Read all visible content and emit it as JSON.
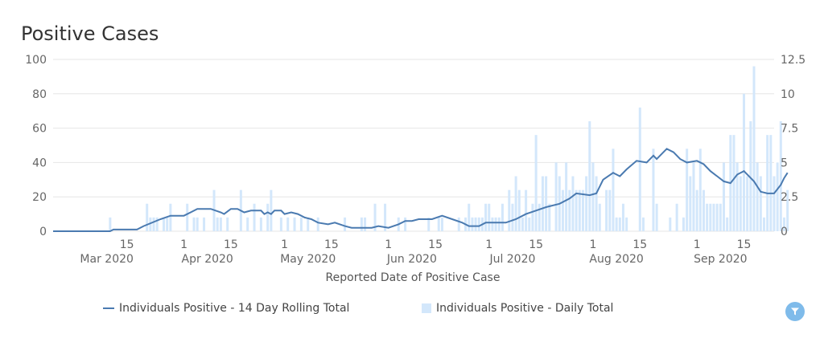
{
  "title": "Positive Cases",
  "legend": {
    "rolling": "Individuals Positive - 14 Day Rolling Total",
    "daily": "Individuals Positive - Daily Total"
  },
  "colors": {
    "line": "#4a7ab0",
    "bar": "#d3e7fb",
    "grid": "#e6e6e6",
    "filter": "#7fbbea"
  },
  "filter_icon": "filter-icon",
  "chart_data": {
    "type": "bar",
    "title": "Positive Cases",
    "xlabel": "Reported Date of Positive Case",
    "ylabel": "",
    "x_range": [
      "2020-02-22",
      "2020-09-24"
    ],
    "ylim": [
      0,
      100
    ],
    "y2lim": [
      0,
      12.5
    ],
    "yticks": [
      0,
      20,
      40,
      60,
      80,
      100
    ],
    "y2ticks": [
      "0",
      "2.5",
      "5",
      "7.5",
      "10",
      "12.5"
    ],
    "grid": true,
    "legend_position": "bottom",
    "x_ticks": [
      {
        "date": "2020-03-15",
        "label": "15"
      },
      {
        "date": "2020-04-01",
        "label": "1"
      },
      {
        "date": "2020-04-15",
        "label": "15"
      },
      {
        "date": "2020-05-01",
        "label": "1"
      },
      {
        "date": "2020-05-15",
        "label": "15"
      },
      {
        "date": "2020-06-01",
        "label": "1"
      },
      {
        "date": "2020-06-15",
        "label": "15"
      },
      {
        "date": "2020-07-01",
        "label": "1"
      },
      {
        "date": "2020-07-15",
        "label": "15"
      },
      {
        "date": "2020-08-01",
        "label": "1"
      },
      {
        "date": "2020-08-15",
        "label": "15"
      },
      {
        "date": "2020-09-01",
        "label": "1"
      },
      {
        "date": "2020-09-15",
        "label": "15"
      }
    ],
    "month_labels": [
      {
        "date": "2020-03-09",
        "label": "Mar 2020"
      },
      {
        "date": "2020-04-08",
        "label": "Apr 2020"
      },
      {
        "date": "2020-05-08",
        "label": "May 2020"
      },
      {
        "date": "2020-06-08",
        "label": "Jun 2020"
      },
      {
        "date": "2020-07-08",
        "label": "Jul 2020"
      },
      {
        "date": "2020-08-08",
        "label": "Aug 2020"
      },
      {
        "date": "2020-09-08",
        "label": "Sep 2020"
      }
    ],
    "series": [
      {
        "name": "Individuals Positive - Daily Total",
        "type": "bar",
        "axis": "right",
        "points": [
          [
            "2020-03-10",
            1
          ],
          [
            "2020-03-15",
            0
          ],
          [
            "2020-03-21",
            2
          ],
          [
            "2020-03-22",
            1
          ],
          [
            "2020-03-23",
            1
          ],
          [
            "2020-03-24",
            1
          ],
          [
            "2020-03-26",
            1
          ],
          [
            "2020-03-27",
            1
          ],
          [
            "2020-03-28",
            2
          ],
          [
            "2020-04-02",
            2
          ],
          [
            "2020-04-04",
            1
          ],
          [
            "2020-04-05",
            1
          ],
          [
            "2020-04-07",
            1
          ],
          [
            "2020-04-10",
            3
          ],
          [
            "2020-04-11",
            1
          ],
          [
            "2020-04-12",
            1
          ],
          [
            "2020-04-14",
            1
          ],
          [
            "2020-04-18",
            3
          ],
          [
            "2020-04-20",
            1
          ],
          [
            "2020-04-22",
            2
          ],
          [
            "2020-04-24",
            1
          ],
          [
            "2020-04-26",
            2
          ],
          [
            "2020-04-27",
            3
          ],
          [
            "2020-04-30",
            1
          ],
          [
            "2020-05-02",
            1
          ],
          [
            "2020-05-04",
            1
          ],
          [
            "2020-05-06",
            1
          ],
          [
            "2020-05-08",
            1
          ],
          [
            "2020-05-11",
            1
          ],
          [
            "2020-05-19",
            1
          ],
          [
            "2020-05-24",
            1
          ],
          [
            "2020-05-25",
            1
          ],
          [
            "2020-05-28",
            2
          ],
          [
            "2020-05-31",
            2
          ],
          [
            "2020-06-04",
            1
          ],
          [
            "2020-06-06",
            1
          ],
          [
            "2020-06-13",
            1
          ],
          [
            "2020-06-16",
            1
          ],
          [
            "2020-06-17",
            1
          ],
          [
            "2020-06-22",
            1
          ],
          [
            "2020-06-24",
            1
          ],
          [
            "2020-06-25",
            2
          ],
          [
            "2020-06-26",
            1
          ],
          [
            "2020-06-27",
            1
          ],
          [
            "2020-06-28",
            1
          ],
          [
            "2020-06-29",
            1
          ],
          [
            "2020-06-30",
            2
          ],
          [
            "2020-07-01",
            2
          ],
          [
            "2020-07-02",
            1
          ],
          [
            "2020-07-03",
            1
          ],
          [
            "2020-07-04",
            1
          ],
          [
            "2020-07-05",
            2
          ],
          [
            "2020-07-07",
            3
          ],
          [
            "2020-07-08",
            2
          ],
          [
            "2020-07-09",
            4
          ],
          [
            "2020-07-10",
            3
          ],
          [
            "2020-07-11",
            1
          ],
          [
            "2020-07-12",
            3
          ],
          [
            "2020-07-13",
            1
          ],
          [
            "2020-07-14",
            2
          ],
          [
            "2020-07-15",
            7
          ],
          [
            "2020-07-16",
            2
          ],
          [
            "2020-07-17",
            4
          ],
          [
            "2020-07-18",
            4
          ],
          [
            "2020-07-19",
            2
          ],
          [
            "2020-07-21",
            5
          ],
          [
            "2020-07-22",
            4
          ],
          [
            "2020-07-23",
            3
          ],
          [
            "2020-07-24",
            5
          ],
          [
            "2020-07-25",
            3
          ],
          [
            "2020-07-26",
            4
          ],
          [
            "2020-07-27",
            3
          ],
          [
            "2020-07-28",
            3
          ],
          [
            "2020-07-29",
            3
          ],
          [
            "2020-07-30",
            4
          ],
          [
            "2020-07-31",
            8
          ],
          [
            "2020-08-01",
            5
          ],
          [
            "2020-08-02",
            4
          ],
          [
            "2020-08-03",
            2
          ],
          [
            "2020-08-05",
            3
          ],
          [
            "2020-08-06",
            3
          ],
          [
            "2020-08-07",
            6
          ],
          [
            "2020-08-08",
            1
          ],
          [
            "2020-08-09",
            1
          ],
          [
            "2020-08-10",
            2
          ],
          [
            "2020-08-11",
            1
          ],
          [
            "2020-08-15",
            9
          ],
          [
            "2020-08-16",
            1
          ],
          [
            "2020-08-19",
            6
          ],
          [
            "2020-08-20",
            2
          ],
          [
            "2020-08-24",
            1
          ],
          [
            "2020-08-26",
            2
          ],
          [
            "2020-08-28",
            1
          ],
          [
            "2020-08-29",
            6
          ],
          [
            "2020-08-30",
            4
          ],
          [
            "2020-08-31",
            5
          ],
          [
            "2020-09-01",
            3
          ],
          [
            "2020-09-02",
            6
          ],
          [
            "2020-09-03",
            3
          ],
          [
            "2020-09-04",
            2
          ],
          [
            "2020-09-05",
            2
          ],
          [
            "2020-09-06",
            2
          ],
          [
            "2020-09-07",
            2
          ],
          [
            "2020-09-08",
            2
          ],
          [
            "2020-09-09",
            5
          ],
          [
            "2020-09-10",
            1
          ],
          [
            "2020-09-11",
            7
          ],
          [
            "2020-09-12",
            7
          ],
          [
            "2020-09-13",
            5
          ],
          [
            "2020-09-14",
            4
          ],
          [
            "2020-09-15",
            10
          ],
          [
            "2020-09-16",
            4
          ],
          [
            "2020-09-17",
            8
          ],
          [
            "2020-09-18",
            12
          ],
          [
            "2020-09-19",
            5
          ],
          [
            "2020-09-20",
            4
          ],
          [
            "2020-09-21",
            1
          ],
          [
            "2020-09-22",
            7
          ],
          [
            "2020-09-23",
            7
          ],
          [
            "2020-09-24",
            4
          ],
          [
            "2020-09-25",
            5
          ],
          [
            "2020-09-26",
            8
          ],
          [
            "2020-09-27",
            1
          ],
          [
            "2020-09-28",
            3
          ]
        ]
      },
      {
        "name": "Individuals Positive - 14 Day Rolling Total",
        "type": "line",
        "axis": "left",
        "points": [
          [
            "2020-02-22",
            0
          ],
          [
            "2020-03-10",
            0
          ],
          [
            "2020-03-11",
            1
          ],
          [
            "2020-03-18",
            1
          ],
          [
            "2020-03-20",
            3
          ],
          [
            "2020-03-25",
            7
          ],
          [
            "2020-03-28",
            9
          ],
          [
            "2020-04-01",
            9
          ],
          [
            "2020-04-03",
            11
          ],
          [
            "2020-04-05",
            13
          ],
          [
            "2020-04-09",
            13
          ],
          [
            "2020-04-12",
            11
          ],
          [
            "2020-04-13",
            10
          ],
          [
            "2020-04-15",
            13
          ],
          [
            "2020-04-17",
            13
          ],
          [
            "2020-04-19",
            11
          ],
          [
            "2020-04-21",
            12
          ],
          [
            "2020-04-24",
            12
          ],
          [
            "2020-04-25",
            10
          ],
          [
            "2020-04-26",
            11
          ],
          [
            "2020-04-27",
            10
          ],
          [
            "2020-04-28",
            12
          ],
          [
            "2020-04-30",
            12
          ],
          [
            "2020-05-01",
            10
          ],
          [
            "2020-05-03",
            11
          ],
          [
            "2020-05-05",
            10
          ],
          [
            "2020-05-07",
            8
          ],
          [
            "2020-05-09",
            7
          ],
          [
            "2020-05-11",
            5
          ],
          [
            "2020-05-14",
            4
          ],
          [
            "2020-05-16",
            5
          ],
          [
            "2020-05-19",
            3
          ],
          [
            "2020-05-21",
            2
          ],
          [
            "2020-05-27",
            2
          ],
          [
            "2020-05-29",
            3
          ],
          [
            "2020-06-01",
            2
          ],
          [
            "2020-06-04",
            4
          ],
          [
            "2020-06-06",
            6
          ],
          [
            "2020-06-08",
            6
          ],
          [
            "2020-06-10",
            7
          ],
          [
            "2020-06-14",
            7
          ],
          [
            "2020-06-17",
            9
          ],
          [
            "2020-06-20",
            7
          ],
          [
            "2020-06-23",
            5
          ],
          [
            "2020-06-25",
            3
          ],
          [
            "2020-06-28",
            3
          ],
          [
            "2020-06-30",
            5
          ],
          [
            "2020-07-03",
            5
          ],
          [
            "2020-07-06",
            5
          ],
          [
            "2020-07-09",
            7
          ],
          [
            "2020-07-12",
            10
          ],
          [
            "2020-07-15",
            12
          ],
          [
            "2020-07-18",
            14
          ],
          [
            "2020-07-22",
            16
          ],
          [
            "2020-07-25",
            19
          ],
          [
            "2020-07-27",
            22
          ],
          [
            "2020-07-31",
            21
          ],
          [
            "2020-08-02",
            22
          ],
          [
            "2020-08-04",
            30
          ],
          [
            "2020-08-07",
            34
          ],
          [
            "2020-08-09",
            32
          ],
          [
            "2020-08-11",
            36
          ],
          [
            "2020-08-14",
            41
          ],
          [
            "2020-08-17",
            40
          ],
          [
            "2020-08-19",
            44
          ],
          [
            "2020-08-20",
            42
          ],
          [
            "2020-08-23",
            48
          ],
          [
            "2020-08-25",
            46
          ],
          [
            "2020-08-27",
            42
          ],
          [
            "2020-08-29",
            40
          ],
          [
            "2020-09-01",
            41
          ],
          [
            "2020-09-03",
            39
          ],
          [
            "2020-09-05",
            35
          ],
          [
            "2020-09-07",
            32
          ],
          [
            "2020-09-09",
            29
          ],
          [
            "2020-09-11",
            28
          ],
          [
            "2020-09-13",
            33
          ],
          [
            "2020-09-15",
            35
          ],
          [
            "2020-09-18",
            29
          ],
          [
            "2020-09-20",
            23
          ],
          [
            "2020-09-22",
            22
          ],
          [
            "2020-09-24",
            22
          ],
          [
            "2020-09-26",
            27
          ],
          [
            "2020-09-27",
            31
          ],
          [
            "2020-09-28",
            34
          ]
        ]
      }
    ]
  }
}
